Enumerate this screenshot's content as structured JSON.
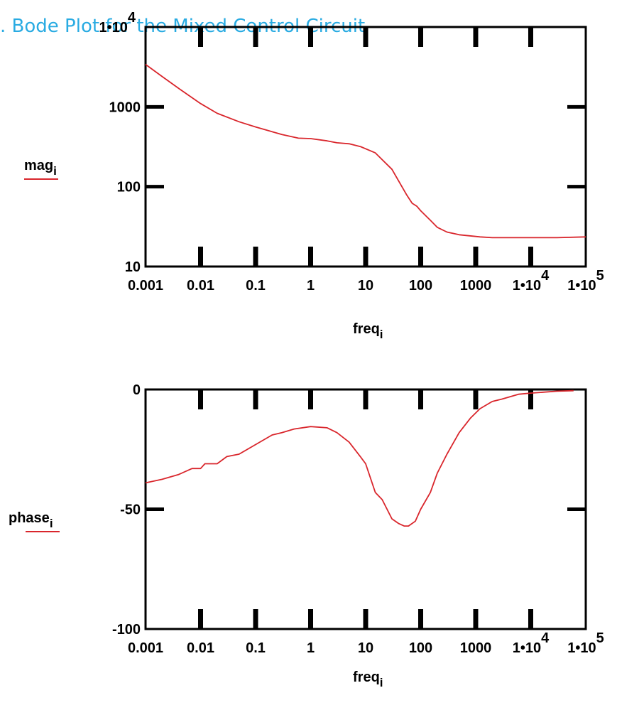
{
  "title": ". Bode Plot for the Mixed Control Circuit",
  "colors": {
    "series": "#d9262c",
    "title": "#29abe2"
  },
  "chart_data": [
    {
      "type": "line",
      "scale": {
        "x": "log",
        "y": "log"
      },
      "xlim": [
        0.001,
        100000
      ],
      "ylim": [
        10,
        10000
      ],
      "xticks": [
        {
          "v": 0.001,
          "label": "0.001"
        },
        {
          "v": 0.01,
          "label": "0.01"
        },
        {
          "v": 0.1,
          "label": "0.1"
        },
        {
          "v": 1,
          "label": "1"
        },
        {
          "v": 10,
          "label": "10"
        },
        {
          "v": 100,
          "label": "100"
        },
        {
          "v": 1000,
          "label": "1000"
        },
        {
          "v": 10000,
          "label": "1•10",
          "sup": "4"
        },
        {
          "v": 100000,
          "label": "1•10",
          "sup": "5"
        }
      ],
      "yticks": [
        {
          "v": 10000,
          "label": "1•10",
          "sup": "4"
        },
        {
          "v": 1000,
          "label": "1000"
        },
        {
          "v": 100,
          "label": "100"
        },
        {
          "v": 10,
          "label": "10"
        }
      ],
      "xlabel": {
        "base": "freq",
        "sub": "i"
      },
      "ylabel": {
        "base": "mag",
        "sub": "i"
      },
      "series": [
        {
          "x": [
            0.001,
            0.002,
            0.004,
            0.01,
            0.02,
            0.05,
            0.1,
            0.3,
            0.6,
            1,
            2,
            3,
            5,
            8,
            15,
            30,
            55,
            70,
            85,
            100,
            150,
            200,
            300,
            500,
            900,
            1200,
            2000,
            5000,
            10000,
            30000,
            100000
          ],
          "y": [
            3400,
            2400,
            1700,
            1100,
            830,
            650,
            560,
            450,
            405,
            400,
            375,
            355,
            345,
            318,
            265,
            165,
            80,
            62,
            57,
            50,
            38,
            31,
            27,
            25,
            24,
            23.5,
            23,
            23,
            23,
            23,
            23.5
          ]
        }
      ]
    },
    {
      "type": "line",
      "scale": {
        "x": "log",
        "y": "linear"
      },
      "xlim": [
        0.001,
        100000
      ],
      "ylim": [
        -100,
        0
      ],
      "xticks": [
        {
          "v": 0.001,
          "label": "0.001"
        },
        {
          "v": 0.01,
          "label": "0.01"
        },
        {
          "v": 0.1,
          "label": "0.1"
        },
        {
          "v": 1,
          "label": "1"
        },
        {
          "v": 10,
          "label": "10"
        },
        {
          "v": 100,
          "label": "100"
        },
        {
          "v": 1000,
          "label": "1000"
        },
        {
          "v": 10000,
          "label": "1•10",
          "sup": "4"
        },
        {
          "v": 100000,
          "label": "1•10",
          "sup": "5"
        }
      ],
      "yticks": [
        {
          "v": 0,
          "label": "0"
        },
        {
          "v": -50,
          "label": "-50"
        },
        {
          "v": -100,
          "label": "-100"
        }
      ],
      "xlabel": {
        "base": "freq",
        "sub": "i"
      },
      "ylabel": {
        "base": "phase",
        "sub": "i"
      },
      "series": [
        {
          "x": [
            0.001,
            0.002,
            0.004,
            0.007,
            0.01,
            0.012,
            0.02,
            0.03,
            0.05,
            0.1,
            0.2,
            0.3,
            0.5,
            1,
            2,
            3,
            5,
            8,
            10,
            15,
            20,
            30,
            40,
            50,
            60,
            80,
            100,
            150,
            200,
            300,
            500,
            800,
            1200,
            2000,
            3000,
            6000,
            10000,
            30000,
            60000
          ],
          "y": [
            -39,
            -37.5,
            -35.5,
            -33,
            -33,
            -31,
            -31,
            -28,
            -27,
            -23,
            -19,
            -18,
            -16.5,
            -15.5,
            -16,
            -18,
            -22,
            -28,
            -31,
            -43,
            -46,
            -54,
            -56,
            -57,
            -57,
            -55,
            -50,
            -43,
            -35,
            -27,
            -18,
            -12,
            -8,
            -5,
            -4,
            -2,
            -1.5,
            -0.7,
            -0.5
          ]
        }
      ]
    }
  ]
}
